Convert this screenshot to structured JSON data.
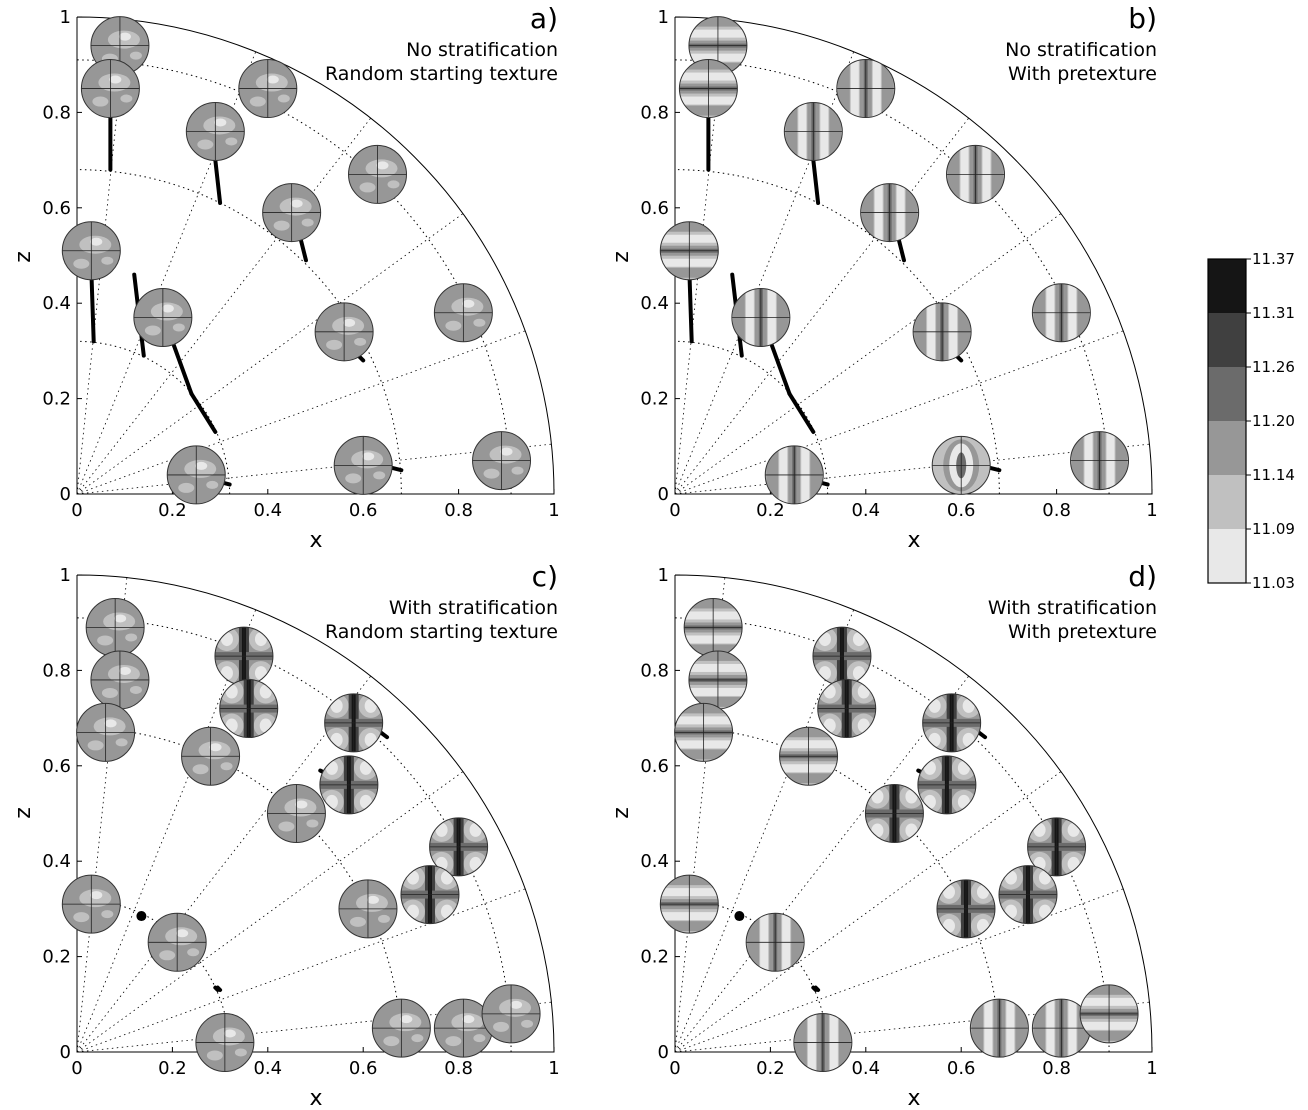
{
  "chart_data": {
    "type": "scatter",
    "description_free": true,
    "colorbar": {
      "ticks": [
        "11.37",
        "11.31",
        "11.26",
        "11.20",
        "11.14",
        "11.09",
        "11.03"
      ],
      "colors": [
        "#151515",
        "#404040",
        "#6b6b6b",
        "#979797",
        "#c0c0c0",
        "#e8e8e8"
      ]
    },
    "panels": [
      {
        "label": "a)",
        "line1": "No stratification",
        "line2": "Random starting texture",
        "xlabel": "x",
        "ylabel": "z",
        "xlim": [
          0,
          1
        ],
        "ylim": [
          0,
          1
        ],
        "xticks": [
          "0",
          "0.2",
          "0.4",
          "0.6",
          "0.8",
          "1"
        ],
        "yticks": [
          "0",
          "0.2",
          "0.4",
          "0.6",
          "0.8",
          "1"
        ],
        "radii": [
          0.32,
          0.68,
          0.91
        ],
        "ray_angles_deg": [
          6,
          20,
          36,
          52,
          68,
          84
        ],
        "pole_figures": [
          {
            "x": 0.09,
            "y": 0.94,
            "style": "random"
          },
          {
            "x": 0.07,
            "y": 0.85,
            "style": "random"
          },
          {
            "x": 0.4,
            "y": 0.85,
            "style": "random"
          },
          {
            "x": 0.29,
            "y": 0.76,
            "style": "random"
          },
          {
            "x": 0.63,
            "y": 0.67,
            "style": "random"
          },
          {
            "x": 0.45,
            "y": 0.59,
            "style": "random"
          },
          {
            "x": 0.03,
            "y": 0.51,
            "style": "random"
          },
          {
            "x": 0.18,
            "y": 0.37,
            "style": "random"
          },
          {
            "x": 0.56,
            "y": 0.34,
            "style": "random"
          },
          {
            "x": 0.81,
            "y": 0.38,
            "style": "random"
          },
          {
            "x": 0.25,
            "y": 0.04,
            "style": "random"
          },
          {
            "x": 0.6,
            "y": 0.06,
            "style": "random"
          },
          {
            "x": 0.89,
            "y": 0.07,
            "style": "random"
          }
        ],
        "trajectories": [
          [
            [
              0.07,
              0.81
            ],
            [
              0.07,
              0.68
            ]
          ],
          [
            [
              0.29,
              0.7
            ],
            [
              0.3,
              0.61
            ]
          ],
          [
            [
              0.47,
              0.53
            ],
            [
              0.48,
              0.49
            ]
          ],
          [
            [
              0.03,
              0.47
            ],
            [
              0.035,
              0.32
            ]
          ],
          [
            [
              0.12,
              0.46
            ],
            [
              0.14,
              0.29
            ]
          ],
          [
            [
              0.2,
              0.32
            ],
            [
              0.24,
              0.21
            ]
          ],
          [
            [
              0.24,
              0.21
            ],
            [
              0.29,
              0.13
            ]
          ],
          [
            [
              0.58,
              0.3
            ],
            [
              0.6,
              0.28
            ]
          ],
          [
            [
              0.66,
              0.055
            ],
            [
              0.68,
              0.05
            ]
          ],
          [
            [
              0.3,
              0.025
            ],
            [
              0.32,
              0.02
            ]
          ]
        ]
      },
      {
        "label": "b)",
        "line1": "No stratification",
        "line2": "With pretexture",
        "xlabel": "x",
        "ylabel": "z",
        "xlim": [
          0,
          1
        ],
        "ylim": [
          0,
          1
        ],
        "xticks": [
          "0",
          "0.2",
          "0.4",
          "0.6",
          "0.8",
          "1"
        ],
        "yticks": [
          "0",
          "0.2",
          "0.4",
          "0.6",
          "0.8",
          "1"
        ],
        "radii": [
          0.32,
          0.68,
          0.91
        ],
        "ray_angles_deg": [
          6,
          20,
          36,
          52,
          68,
          84
        ],
        "pole_figures": [
          {
            "x": 0.09,
            "y": 0.94,
            "style": "hbands"
          },
          {
            "x": 0.07,
            "y": 0.85,
            "style": "hbands"
          },
          {
            "x": 0.4,
            "y": 0.85,
            "style": "vbands"
          },
          {
            "x": 0.29,
            "y": 0.76,
            "style": "vbands"
          },
          {
            "x": 0.63,
            "y": 0.67,
            "style": "vbands"
          },
          {
            "x": 0.45,
            "y": 0.59,
            "style": "vbands"
          },
          {
            "x": 0.03,
            "y": 0.51,
            "style": "hbands"
          },
          {
            "x": 0.18,
            "y": 0.37,
            "style": "vbands"
          },
          {
            "x": 0.56,
            "y": 0.34,
            "style": "vbands"
          },
          {
            "x": 0.81,
            "y": 0.38,
            "style": "vbands"
          },
          {
            "x": 0.25,
            "y": 0.04,
            "style": "vbands"
          },
          {
            "x": 0.6,
            "y": 0.06,
            "style": "ring"
          },
          {
            "x": 0.89,
            "y": 0.07,
            "style": "vbands"
          }
        ],
        "trajectories": [
          [
            [
              0.07,
              0.81
            ],
            [
              0.07,
              0.68
            ]
          ],
          [
            [
              0.29,
              0.7
            ],
            [
              0.3,
              0.61
            ]
          ],
          [
            [
              0.47,
              0.53
            ],
            [
              0.48,
              0.49
            ]
          ],
          [
            [
              0.03,
              0.47
            ],
            [
              0.035,
              0.32
            ]
          ],
          [
            [
              0.12,
              0.46
            ],
            [
              0.14,
              0.29
            ]
          ],
          [
            [
              0.2,
              0.32
            ],
            [
              0.24,
              0.21
            ]
          ],
          [
            [
              0.24,
              0.21
            ],
            [
              0.29,
              0.13
            ]
          ],
          [
            [
              0.58,
              0.3
            ],
            [
              0.6,
              0.28
            ]
          ],
          [
            [
              0.66,
              0.055
            ],
            [
              0.68,
              0.05
            ]
          ],
          [
            [
              0.3,
              0.025
            ],
            [
              0.32,
              0.02
            ]
          ]
        ]
      },
      {
        "label": "c)",
        "line1": "With stratification",
        "line2": "Random starting texture",
        "xlabel": "x",
        "ylabel": "z",
        "xlim": [
          0,
          1
        ],
        "ylim": [
          0,
          1
        ],
        "xticks": [
          "0",
          "0.2",
          "0.4",
          "0.6",
          "0.8",
          "1"
        ],
        "yticks": [
          "0",
          "0.2",
          "0.4",
          "0.6",
          "0.8",
          "1"
        ],
        "radii": [
          0.32,
          0.68,
          0.91
        ],
        "ray_angles_deg": [
          6,
          20,
          36,
          52,
          68,
          84
        ],
        "pole_figures": [
          {
            "x": 0.08,
            "y": 0.89,
            "style": "random"
          },
          {
            "x": 0.09,
            "y": 0.78,
            "style": "random"
          },
          {
            "x": 0.06,
            "y": 0.67,
            "style": "random"
          },
          {
            "x": 0.35,
            "y": 0.83,
            "style": "cross"
          },
          {
            "x": 0.36,
            "y": 0.72,
            "style": "cross"
          },
          {
            "x": 0.28,
            "y": 0.62,
            "style": "random"
          },
          {
            "x": 0.58,
            "y": 0.69,
            "style": "cross"
          },
          {
            "x": 0.57,
            "y": 0.56,
            "style": "cross"
          },
          {
            "x": 0.46,
            "y": 0.5,
            "style": "random"
          },
          {
            "x": 0.8,
            "y": 0.43,
            "style": "cross"
          },
          {
            "x": 0.74,
            "y": 0.33,
            "style": "cross"
          },
          {
            "x": 0.61,
            "y": 0.3,
            "style": "random"
          },
          {
            "x": 0.03,
            "y": 0.31,
            "style": "random"
          },
          {
            "x": 0.21,
            "y": 0.23,
            "style": "random"
          },
          {
            "x": 0.31,
            "y": 0.02,
            "style": "random"
          },
          {
            "x": 0.68,
            "y": 0.05,
            "style": "random"
          },
          {
            "x": 0.81,
            "y": 0.05,
            "style": "random"
          },
          {
            "x": 0.91,
            "y": 0.08,
            "style": "random"
          }
        ],
        "trajectories": [
          [
            [
              0.51,
              0.59
            ],
            [
              0.53,
              0.58
            ]
          ],
          [
            [
              0.63,
              0.675
            ],
            [
              0.65,
              0.66
            ]
          ],
          [
            [
              0.29,
              0.135
            ],
            [
              0.295,
              0.13
            ]
          ],
          [
            [
              0.295,
              0.135
            ],
            [
              0.3,
              0.13
            ]
          ]
        ],
        "dots": [
          [
            0.135,
            0.285
          ]
        ]
      },
      {
        "label": "d)",
        "line1": "With stratification",
        "line2": "With pretexture",
        "xlabel": "x",
        "ylabel": "z",
        "xlim": [
          0,
          1
        ],
        "ylim": [
          0,
          1
        ],
        "xticks": [
          "0",
          "0.2",
          "0.4",
          "0.6",
          "0.8",
          "1"
        ],
        "yticks": [
          "0",
          "0.2",
          "0.4",
          "0.6",
          "0.8",
          "1"
        ],
        "radii": [
          0.32,
          0.68,
          0.91
        ],
        "ray_angles_deg": [
          6,
          20,
          36,
          52,
          68,
          84
        ],
        "pole_figures": [
          {
            "x": 0.08,
            "y": 0.89,
            "style": "hbands"
          },
          {
            "x": 0.09,
            "y": 0.78,
            "style": "hbands"
          },
          {
            "x": 0.06,
            "y": 0.67,
            "style": "hbands"
          },
          {
            "x": 0.35,
            "y": 0.83,
            "style": "cross"
          },
          {
            "x": 0.36,
            "y": 0.72,
            "style": "cross"
          },
          {
            "x": 0.28,
            "y": 0.62,
            "style": "hbands"
          },
          {
            "x": 0.58,
            "y": 0.69,
            "style": "cross"
          },
          {
            "x": 0.57,
            "y": 0.56,
            "style": "cross"
          },
          {
            "x": 0.46,
            "y": 0.5,
            "style": "cross"
          },
          {
            "x": 0.8,
            "y": 0.43,
            "style": "cross"
          },
          {
            "x": 0.74,
            "y": 0.33,
            "style": "cross"
          },
          {
            "x": 0.61,
            "y": 0.3,
            "style": "cross"
          },
          {
            "x": 0.03,
            "y": 0.31,
            "style": "hbands"
          },
          {
            "x": 0.21,
            "y": 0.23,
            "style": "vbands"
          },
          {
            "x": 0.31,
            "y": 0.02,
            "style": "vbands"
          },
          {
            "x": 0.68,
            "y": 0.05,
            "style": "vbands"
          },
          {
            "x": 0.81,
            "y": 0.05,
            "style": "vbands"
          },
          {
            "x": 0.91,
            "y": 0.08,
            "style": "hbands"
          }
        ],
        "trajectories": [
          [
            [
              0.51,
              0.59
            ],
            [
              0.53,
              0.58
            ]
          ],
          [
            [
              0.63,
              0.675
            ],
            [
              0.65,
              0.66
            ]
          ],
          [
            [
              0.29,
              0.135
            ],
            [
              0.295,
              0.13
            ]
          ],
          [
            [
              0.295,
              0.135
            ],
            [
              0.3,
              0.13
            ]
          ]
        ],
        "dots": [
          [
            0.135,
            0.285
          ]
        ]
      }
    ]
  }
}
